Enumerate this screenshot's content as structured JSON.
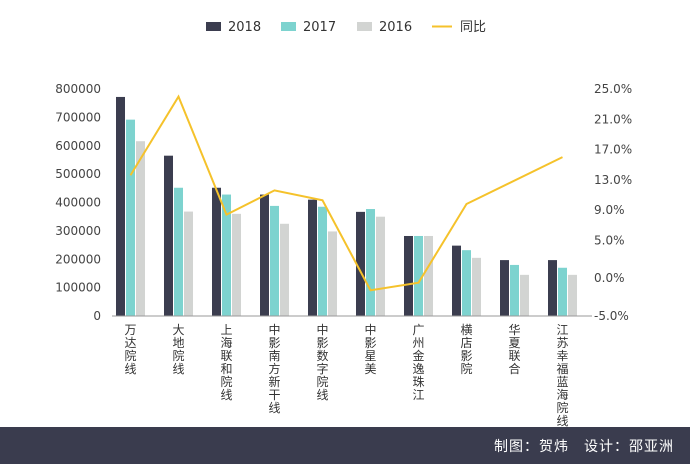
{
  "chart_data": {
    "type": "bar",
    "categories": [
      "万达院线",
      "大地院线",
      "上海联和院线",
      "中影南方新干线",
      "中影数字院线",
      "中影星美",
      "广州金逸珠江",
      "横店影院",
      "华夏联合",
      "江苏幸福蓝海院线"
    ],
    "series": [
      {
        "name": "2018",
        "values": [
          772000,
          565000,
          452000,
          428000,
          410000,
          367000,
          282000,
          248000,
          197000,
          197000
        ]
      },
      {
        "name": "2017",
        "values": [
          692000,
          452000,
          428000,
          388000,
          385000,
          377000,
          282000,
          232000,
          180000,
          170000
        ]
      },
      {
        "name": "2016",
        "values": [
          616000,
          368000,
          360000,
          325000,
          298000,
          350000,
          282000,
          205000,
          145000,
          145000
        ]
      }
    ],
    "line_series": {
      "name": "同比",
      "values": [
        13.6,
        24.0,
        8.4,
        11.6,
        10.3,
        -1.6,
        -0.6,
        9.8,
        null,
        16.0
      ]
    },
    "y_left": {
      "min": 0,
      "max": 800000,
      "ticks": [
        "0",
        "100000",
        "200000",
        "300000",
        "400000",
        "500000",
        "600000",
        "700000",
        "800000"
      ]
    },
    "y_right": {
      "min": -5.0,
      "max": 25.0,
      "ticks": [
        "-5.0%",
        "0.0%",
        "5.0%",
        "9.0%",
        "13.0%",
        "17.0%",
        "21.0%",
        "25.0%"
      ]
    },
    "legend_position": "top",
    "grid": false
  },
  "colors": {
    "s2018": "#3b3d4f",
    "s2017": "#7dd3cf",
    "s2016": "#d2d4d2",
    "line": "#f5c22b",
    "footer": "#3a3c4e"
  },
  "footer": {
    "credit": "制图：贺炜　设计：邵亚洲"
  }
}
